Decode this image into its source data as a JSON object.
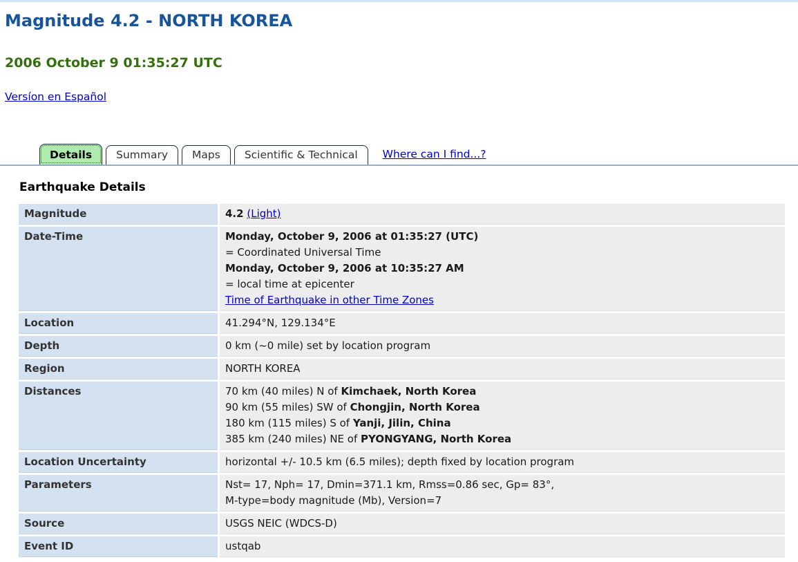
{
  "colors": {
    "title_blue": "#17549b",
    "date_green": "#356e0f",
    "link_blue": "#0000cc",
    "active_tab_green": "#afebaf",
    "tab_border": "#1f2a38",
    "label_cell_blue": "#d3e1f1",
    "value_cell_gray": "#ededed",
    "tab_rule_blue": "#93afc8",
    "top_border_blue": "#cfe3f3"
  },
  "header": {
    "title": "Magnitude 4.2 - NORTH KOREA",
    "datetime": "2006 October 9 01:35:27 UTC",
    "spanish_link": "Versíon en Español"
  },
  "tabs": {
    "items": [
      {
        "label": "Details",
        "active": true
      },
      {
        "label": "Summary",
        "active": false
      },
      {
        "label": "Maps",
        "active": false
      },
      {
        "label": "Scientific & Technical",
        "active": false
      }
    ],
    "where_link": "Where can I find...?"
  },
  "details": {
    "heading": "Earthquake Details",
    "rows": [
      {
        "label": "Magnitude",
        "lines": [
          [
            {
              "t": "4.2",
              "b": true
            },
            {
              "t": " "
            },
            {
              "t": "(Light)",
              "link": true
            }
          ]
        ]
      },
      {
        "label": "Date-Time",
        "lines": [
          [
            {
              "t": "Monday, October 9, 2006 at 01:35:27 (UTC)",
              "b": true
            }
          ],
          [
            {
              "t": "= Coordinated Universal Time"
            }
          ],
          [
            {
              "t": "Monday, October 9, 2006 at 10:35:27 AM",
              "b": true
            }
          ],
          [
            {
              "t": "= local time at epicenter"
            }
          ],
          [
            {
              "t": "Time of Earthquake in other Time Zones",
              "link": true
            }
          ]
        ]
      },
      {
        "label": "Location",
        "lines": [
          [
            {
              "t": "41.294°N, 129.134°E"
            }
          ]
        ]
      },
      {
        "label": "Depth",
        "lines": [
          [
            {
              "t": "0 km (~0 mile) set by location program"
            }
          ]
        ]
      },
      {
        "label": "Region",
        "lines": [
          [
            {
              "t": "NORTH KOREA"
            }
          ]
        ]
      },
      {
        "label": "Distances",
        "lines": [
          [
            {
              "t": "70 km (40 miles) N of "
            },
            {
              "t": "Kimchaek, North Korea",
              "b": true
            }
          ],
          [
            {
              "t": "90 km (55 miles) SW of "
            },
            {
              "t": "Chongjin, North Korea",
              "b": true
            }
          ],
          [
            {
              "t": "180 km (115 miles) S of "
            },
            {
              "t": "Yanji, Jilin, China",
              "b": true
            }
          ],
          [
            {
              "t": "385 km (240 miles) NE of "
            },
            {
              "t": "PYONGYANG, North Korea",
              "b": true
            }
          ]
        ]
      },
      {
        "label": "Location Uncertainty",
        "lines": [
          [
            {
              "t": "horizontal +/- 10.5 km (6.5 miles); depth fixed by location program"
            }
          ]
        ]
      },
      {
        "label": "Parameters",
        "lines": [
          [
            {
              "t": "Nst= 17, Nph= 17, Dmin=371.1 km, Rmss=0.86 sec, Gp= 83°,"
            }
          ],
          [
            {
              "t": "M-type=body magnitude (Mb), Version=7"
            }
          ]
        ]
      },
      {
        "label": "Source",
        "lines": [
          [
            {
              "t": "USGS NEIC (WDCS-D)"
            }
          ]
        ]
      },
      {
        "label": "Event ID",
        "lines": [
          [
            {
              "t": "ustqab"
            }
          ]
        ]
      }
    ]
  }
}
